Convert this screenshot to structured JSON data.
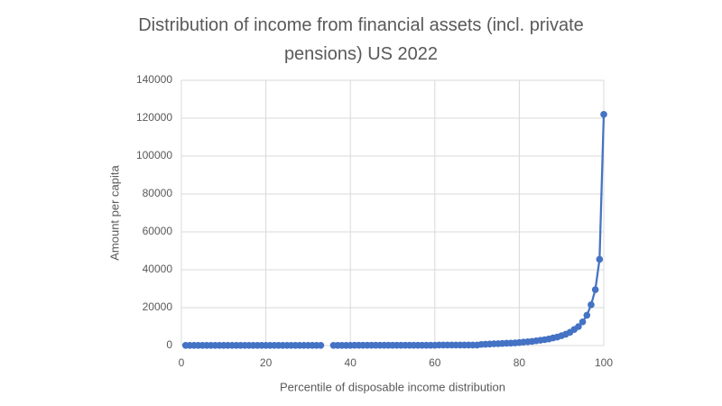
{
  "chart_data": {
    "type": "line",
    "title": "Distribution of income from financial assets (incl. private pensions) US 2022",
    "xlabel": "Percentile of disposable income distribution",
    "ylabel": "Amount per capita",
    "x": [
      1,
      2,
      3,
      4,
      5,
      6,
      7,
      8,
      9,
      10,
      11,
      12,
      13,
      14,
      15,
      16,
      17,
      18,
      19,
      20,
      21,
      22,
      23,
      24,
      25,
      26,
      27,
      28,
      29,
      30,
      31,
      32,
      33,
      34,
      35,
      36,
      37,
      38,
      39,
      40,
      41,
      42,
      43,
      44,
      45,
      46,
      47,
      48,
      49,
      50,
      51,
      52,
      53,
      54,
      55,
      56,
      57,
      58,
      59,
      60,
      61,
      62,
      63,
      64,
      65,
      66,
      67,
      68,
      69,
      70,
      71,
      72,
      73,
      74,
      75,
      76,
      77,
      78,
      79,
      80,
      81,
      82,
      83,
      84,
      85,
      86,
      87,
      88,
      89,
      90,
      91,
      92,
      93,
      94,
      95,
      96,
      97,
      98,
      99,
      100
    ],
    "series": [
      {
        "name": "Amount per capita",
        "color": "#4472c4",
        "values": [
          100,
          100,
          100,
          100,
          100,
          100,
          100,
          100,
          100,
          100,
          100,
          100,
          100,
          100,
          100,
          100,
          100,
          100,
          100,
          100,
          100,
          100,
          100,
          100,
          100,
          100,
          100,
          100,
          100,
          100,
          100,
          100,
          100,
          null,
          null,
          100,
          100,
          100,
          100,
          100,
          150,
          150,
          150,
          150,
          150,
          150,
          150,
          150,
          150,
          150,
          150,
          150,
          150,
          150,
          150,
          150,
          150,
          150,
          150,
          150,
          250,
          250,
          250,
          250,
          250,
          250,
          250,
          250,
          250,
          250,
          600,
          700,
          800,
          900,
          1000,
          1100,
          1200,
          1300,
          1400,
          1600,
          1800,
          2000,
          2200,
          2500,
          2800,
          3100,
          3500,
          4000,
          4500,
          5200,
          6000,
          7000,
          8500,
          10000,
          12500,
          16000,
          21500,
          29500,
          45500,
          122000
        ]
      }
    ],
    "xlim": [
      0,
      100
    ],
    "xticks": [
      0,
      20,
      40,
      60,
      80,
      100
    ],
    "ylim": [
      0,
      140000
    ],
    "yticks": [
      0,
      20000,
      40000,
      60000,
      80000,
      100000,
      120000,
      140000
    ],
    "grid": true
  }
}
